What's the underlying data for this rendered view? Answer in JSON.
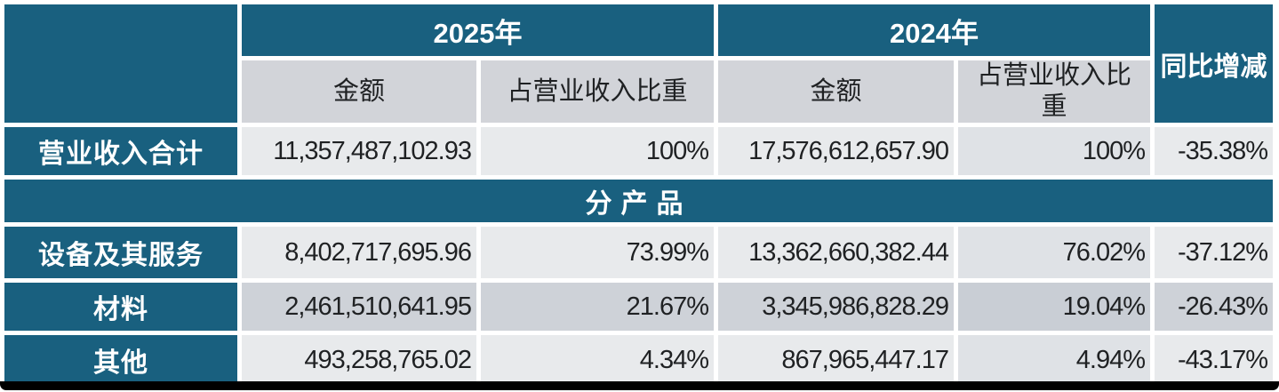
{
  "header": {
    "year_2025": "2025年",
    "year_2024": "2024年",
    "yoy_label": "同比增减",
    "amount_label_2025": "金额",
    "share_label_2025": "占营业收入比重",
    "amount_label_2024": "金额",
    "share_label_2024": "占营业收入比重"
  },
  "section_label": "分产品",
  "total_row": {
    "label": "营业收入合计",
    "amount_2025": "11,357,487,102.93",
    "share_2025": "100%",
    "amount_2024": "17,576,612,657.90",
    "share_2024": "100%",
    "yoy": "-35.38%"
  },
  "product_rows": [
    {
      "label": "设备及其服务",
      "amount_2025": "8,402,717,695.96",
      "share_2025": "73.99%",
      "amount_2024": "13,362,660,382.44",
      "share_2024": "76.02%",
      "yoy": "-37.12%"
    },
    {
      "label": "材料",
      "amount_2025": "2,461,510,641.95",
      "share_2025": "21.67%",
      "amount_2024": "3,345,986,828.29",
      "share_2024": "19.04%",
      "yoy": "-26.43%"
    },
    {
      "label": "其他",
      "amount_2025": "493,258,765.02",
      "share_2025": "4.34%",
      "amount_2024": "867,965,447.17",
      "share_2024": "4.94%",
      "yoy": "-43.17%"
    }
  ],
  "colors": {
    "header_teal": "#19607F",
    "subheader_gray": "#D2D4D9",
    "light_row": "#E8EAEC",
    "stripe_row": "#CED2D8",
    "share_2024_tint": "#DFE2E6",
    "header_text": "#FFFFFF",
    "body_text": "#1F2123",
    "bottom_bar": "#000000"
  }
}
